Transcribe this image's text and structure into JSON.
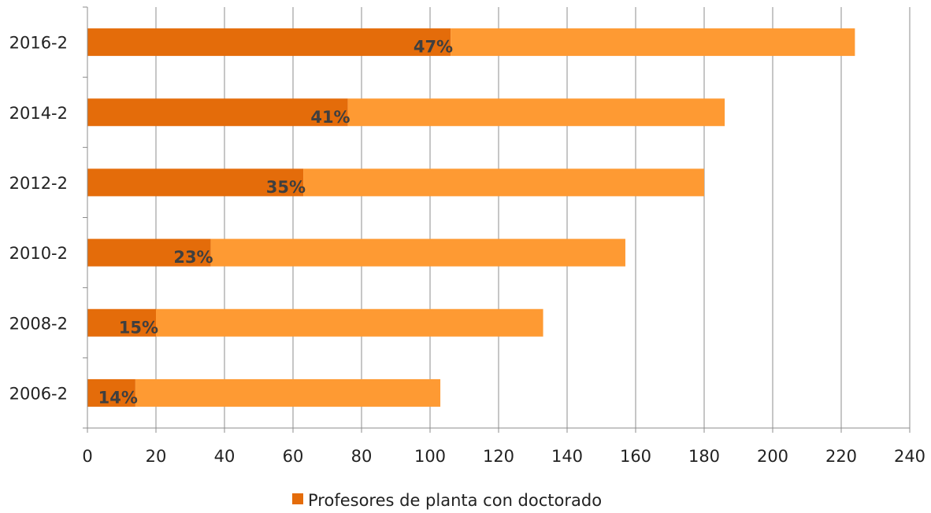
{
  "chart_data": {
    "type": "bar",
    "orientation": "horizontal",
    "stacked": true,
    "categories": [
      "2016-2",
      "2014-2",
      "2012-2",
      "2010-2",
      "2008-2",
      "2006-2"
    ],
    "series": [
      {
        "name": "Profesores de planta con doctorado",
        "values": [
          106,
          76,
          63,
          36,
          20,
          14
        ],
        "labels": [
          "47%",
          "41%",
          "35%",
          "23%",
          "15%",
          "14%"
        ],
        "color": "#e46c0a"
      },
      {
        "values": [
          118,
          110,
          117,
          121,
          113,
          89
        ],
        "color": "#fe9a33"
      }
    ],
    "xlim": [
      0,
      240
    ],
    "xticks": [
      0,
      20,
      40,
      60,
      80,
      100,
      120,
      140,
      160,
      180,
      200,
      220,
      240
    ],
    "grid": "vertical",
    "legend": "bottom-center",
    "title": "",
    "xlabel": "",
    "ylabel": ""
  }
}
